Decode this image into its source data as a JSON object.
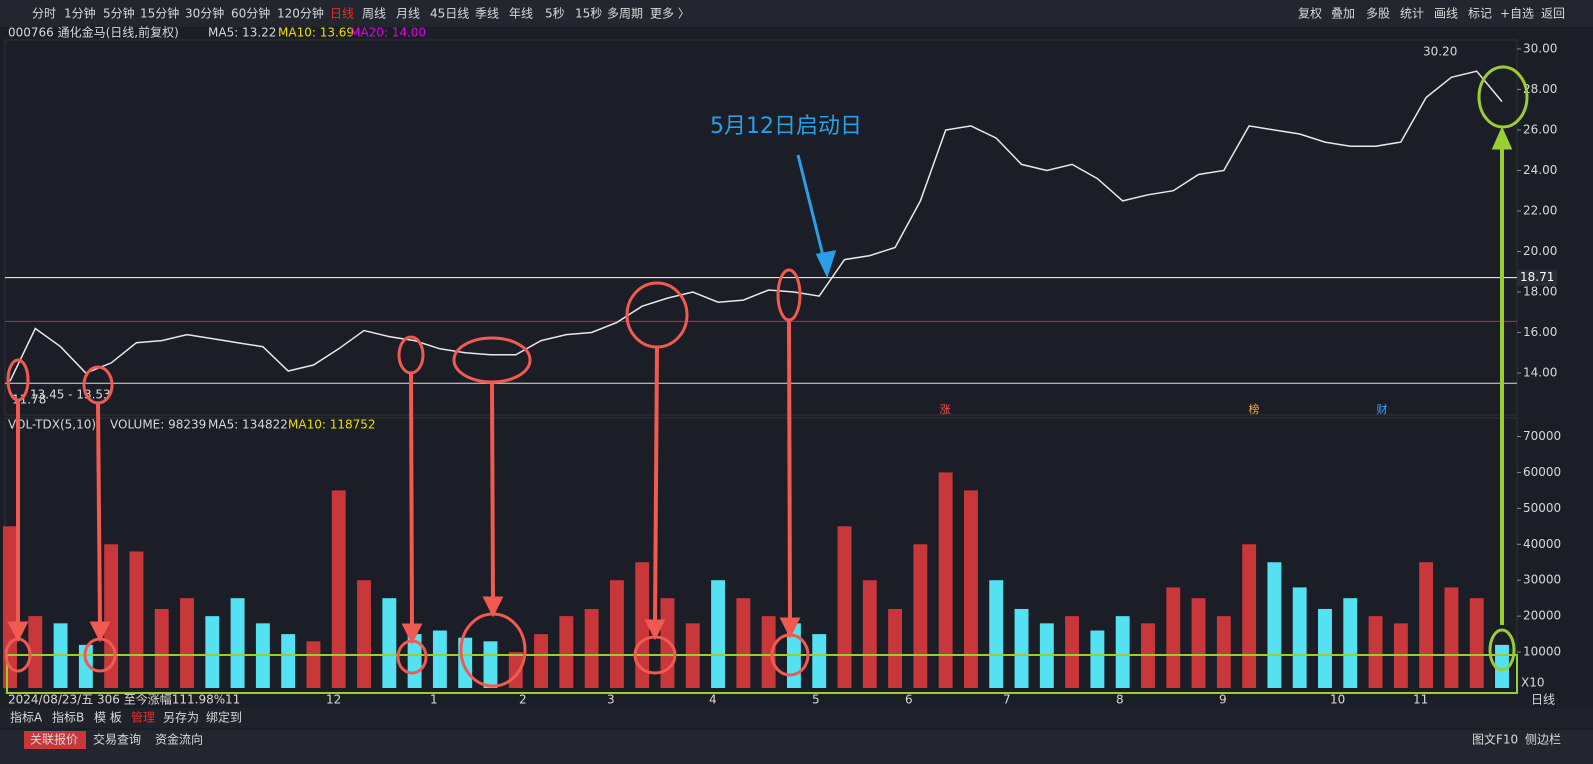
{
  "toolbar": {
    "left": [
      "分时",
      "1分钟",
      "5分钟",
      "15分钟",
      "30分钟",
      "60分钟",
      "120分钟",
      "日线",
      "周线",
      "月线",
      "45日线",
      "季线",
      "年线",
      "5秒",
      "15秒",
      "多周期",
      "更多 〉"
    ],
    "active": "日线",
    "right": [
      "复权",
      "叠加",
      "多股",
      "统计",
      "画线",
      "标记",
      "+自选",
      "返回"
    ]
  },
  "info": {
    "stock": "000766 通化金马(日线,前复权)",
    "ma5": "MA5: 13.22",
    "ma10": "MA10: 13.69",
    "ma20": "MA20: 14.00"
  },
  "price": {
    "type": "line",
    "values": [
      13.6,
      16.2,
      15.3,
      14.0,
      14.5,
      15.5,
      15.6,
      15.9,
      15.7,
      15.5,
      15.3,
      14.1,
      14.4,
      15.2,
      16.1,
      15.8,
      15.6,
      15.2,
      15.0,
      14.9,
      14.9,
      15.6,
      15.9,
      16.0,
      16.5,
      17.3,
      17.7,
      18.0,
      17.5,
      17.6,
      18.1,
      18.0,
      17.8,
      19.6,
      19.8,
      20.2,
      22.5,
      26.0,
      26.2,
      25.6,
      24.3,
      24.0,
      24.3,
      23.6,
      22.5,
      22.8,
      23.0,
      23.8,
      24.0,
      26.2,
      26.0,
      25.8,
      25.4,
      25.2,
      25.2,
      25.4,
      27.6,
      28.6,
      28.9,
      27.4
    ],
    "ylim": [
      11.93,
      30.44
    ],
    "yticks": [
      {
        "value": 30,
        "label": "30.00"
      },
      {
        "value": 28,
        "label": "28.00"
      },
      {
        "value": 26,
        "label": "26.00"
      },
      {
        "value": 24,
        "label": "24.00"
      },
      {
        "value": 22,
        "label": "22.00"
      },
      {
        "value": 20,
        "label": "20.00"
      },
      {
        "value": 18,
        "label": "18.00"
      },
      {
        "value": 16,
        "label": "16.00"
      },
      {
        "value": 14,
        "label": "14.00"
      }
    ],
    "levels": [
      {
        "value": 18.71,
        "label": "18.71",
        "color": "#ffffff"
      },
      {
        "value": 16.55,
        "color": "#e02020"
      },
      {
        "value": 13.5,
        "color": "#dddddd"
      }
    ],
    "high_label": "30.20",
    "range_label": "13.45 - 13.53",
    "low_label": "11.78",
    "markers": [
      "涨",
      "榜",
      "财"
    ]
  },
  "annotation": "5月12日启动日",
  "volume": {
    "type": "bar",
    "header": "VOL-TDX(5,10)",
    "volume": "VOLUME: 98239",
    "ma5": "MA5: 134822",
    "ma10": "MA10: 118752",
    "values": [
      45000,
      20000,
      18000,
      12000,
      40000,
      38000,
      22000,
      25000,
      20000,
      25000,
      18000,
      15000,
      13000,
      55000,
      30000,
      25000,
      15000,
      16000,
      14000,
      13000,
      10000,
      15000,
      20000,
      22000,
      30000,
      35000,
      25000,
      18000,
      30000,
      25000,
      20000,
      18000,
      15000,
      45000,
      30000,
      22000,
      40000,
      60000,
      55000,
      30000,
      22000,
      18000,
      20000,
      16000,
      20000,
      18000,
      28000,
      25000,
      20000,
      40000,
      35000,
      28000,
      22000,
      25000,
      20000,
      18000,
      35000,
      28000,
      25000,
      12000
    ],
    "ylim": [
      0,
      75150
    ],
    "yticks": [
      70000,
      60000,
      50000,
      40000,
      30000,
      20000,
      10000
    ],
    "scale": "X10",
    "up_color": "#c8373a",
    "down_color": "#54e1f2"
  },
  "xaxis": {
    "status": "2024/08/23/五 306 至今涨幅111.98%",
    "months": [
      "11",
      "12",
      "1",
      "2",
      "3",
      "4",
      "5",
      "6",
      "7",
      "8",
      "9",
      "10",
      "11"
    ],
    "period": "日线"
  },
  "tabs": [
    "指标A",
    "指标B",
    "模 板",
    "管理",
    "另存为",
    "绑定到"
  ],
  "active_tab": "管理",
  "footer": {
    "left": [
      "关联报价",
      "交易查询",
      "资金流向"
    ],
    "right": [
      "图文F10",
      "侧边栏"
    ]
  }
}
